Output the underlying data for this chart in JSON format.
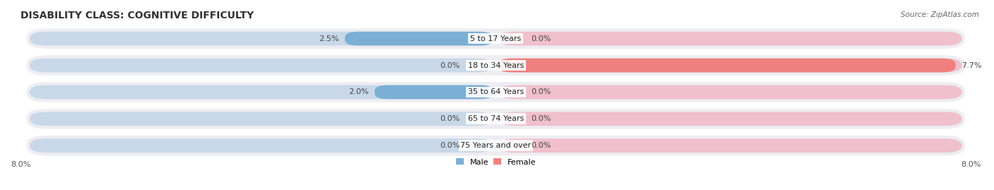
{
  "title": "DISABILITY CLASS: COGNITIVE DIFFICULTY",
  "source": "Source: ZipAtlas.com",
  "categories": [
    "5 to 17 Years",
    "18 to 34 Years",
    "35 to 64 Years",
    "65 to 74 Years",
    "75 Years and over"
  ],
  "male_values": [
    2.5,
    0.0,
    2.0,
    0.0,
    0.0
  ],
  "female_values": [
    0.0,
    7.7,
    0.0,
    0.0,
    0.0
  ],
  "male_color": "#7bafd4",
  "female_color": "#f08080",
  "bar_bg_color_male": "#c8d8e8",
  "bar_bg_color_female": "#f0c0cc",
  "row_bg_color": "#ededf2",
  "x_min": -8.0,
  "x_max": 8.0,
  "title_fontsize": 10,
  "label_fontsize": 8,
  "tick_fontsize": 8,
  "background_color": "#ffffff"
}
